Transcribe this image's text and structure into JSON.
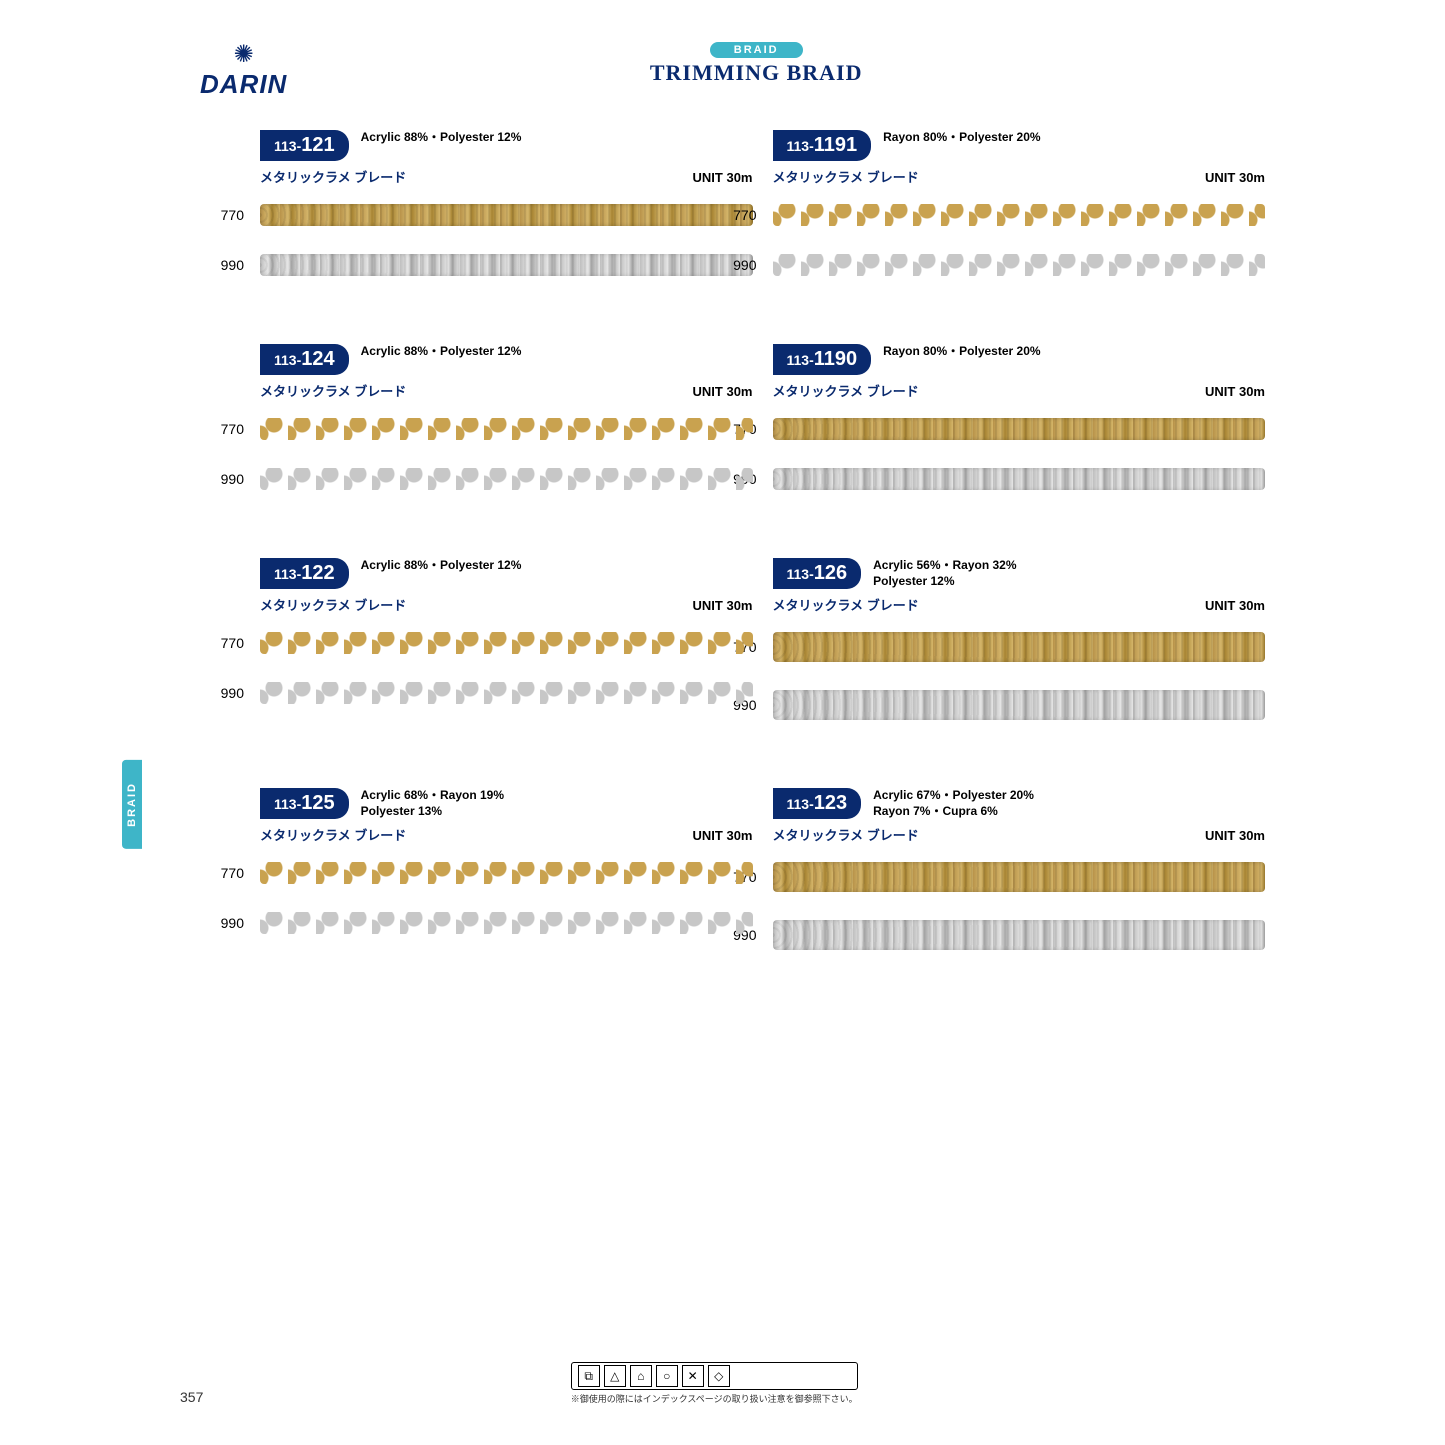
{
  "header": {
    "brand": "DARIN",
    "pill": "BRAID",
    "title": "TRIMMING BRAID"
  },
  "sideTab": "BRAID",
  "pageNumber": "357",
  "careNote": "※御使用の際にはインデックスページの取り扱い注意を御参照下さい。",
  "products": [
    {
      "code_prefix": "113-",
      "code_main": "121",
      "composition": "Acrylic  88%・Polyester  12%",
      "composition2": "",
      "jp": "メタリックラメ ブレード",
      "unit": "UNIT  30m",
      "variants": [
        {
          "code": "770",
          "style": "gold"
        },
        {
          "code": "990",
          "style": "silver"
        }
      ],
      "braidClass": ""
    },
    {
      "code_prefix": "113-",
      "code_main": "1191",
      "composition": "Rayon  80%・Polyester  20%",
      "composition2": "",
      "jp": "メタリックラメ ブレード",
      "unit": "UNIT  30m",
      "variants": [
        {
          "code": "770",
          "style": "gold"
        },
        {
          "code": "990",
          "style": "silver"
        }
      ],
      "braidClass": "wave"
    },
    {
      "code_prefix": "113-",
      "code_main": "124",
      "composition": "Acrylic  88%・Polyester  12%",
      "composition2": "",
      "jp": "メタリックラメ ブレード",
      "unit": "UNIT  30m",
      "variants": [
        {
          "code": "770",
          "style": "gold"
        },
        {
          "code": "990",
          "style": "silver"
        }
      ],
      "braidClass": "wave"
    },
    {
      "code_prefix": "113-",
      "code_main": "1190",
      "composition": "Rayon  80%・Polyester  20%",
      "composition2": "",
      "jp": "メタリックラメ ブレード",
      "unit": "UNIT  30m",
      "variants": [
        {
          "code": "770",
          "style": "gold"
        },
        {
          "code": "990",
          "style": "silver"
        }
      ],
      "braidClass": ""
    },
    {
      "code_prefix": "113-",
      "code_main": "122",
      "composition": "Acrylic  88%・Polyester  12%",
      "composition2": "",
      "jp": "メタリックラメ ブレード",
      "unit": "UNIT  30m",
      "variants": [
        {
          "code": "770",
          "style": "gold"
        },
        {
          "code": "990",
          "style": "silver"
        }
      ],
      "braidClass": "wave"
    },
    {
      "code_prefix": "113-",
      "code_main": "126",
      "composition": "Acrylic  56%・Rayon  32%",
      "composition2": "Polyester  12%",
      "jp": "メタリックラメ ブレード",
      "unit": "UNIT  30m",
      "variants": [
        {
          "code": "770",
          "style": "gold"
        },
        {
          "code": "990",
          "style": "silver"
        }
      ],
      "braidClass": "thick"
    },
    {
      "code_prefix": "113-",
      "code_main": "125",
      "composition": "Acrylic  68%・Rayon  19%",
      "composition2": "Polyester  13%",
      "jp": "メタリックラメ ブレード",
      "unit": "UNIT  30m",
      "variants": [
        {
          "code": "770",
          "style": "gold"
        },
        {
          "code": "990",
          "style": "silver"
        }
      ],
      "braidClass": "wave"
    },
    {
      "code_prefix": "113-",
      "code_main": "123",
      "composition": "Acrylic  67%・Polyester  20%",
      "composition2": "Rayon  7%・Cupra  6%",
      "jp": "メタリックラメ ブレード",
      "unit": "UNIT  30m",
      "variants": [
        {
          "code": "770",
          "style": "gold"
        },
        {
          "code": "990",
          "style": "silver"
        }
      ],
      "braidClass": "thick"
    }
  ]
}
